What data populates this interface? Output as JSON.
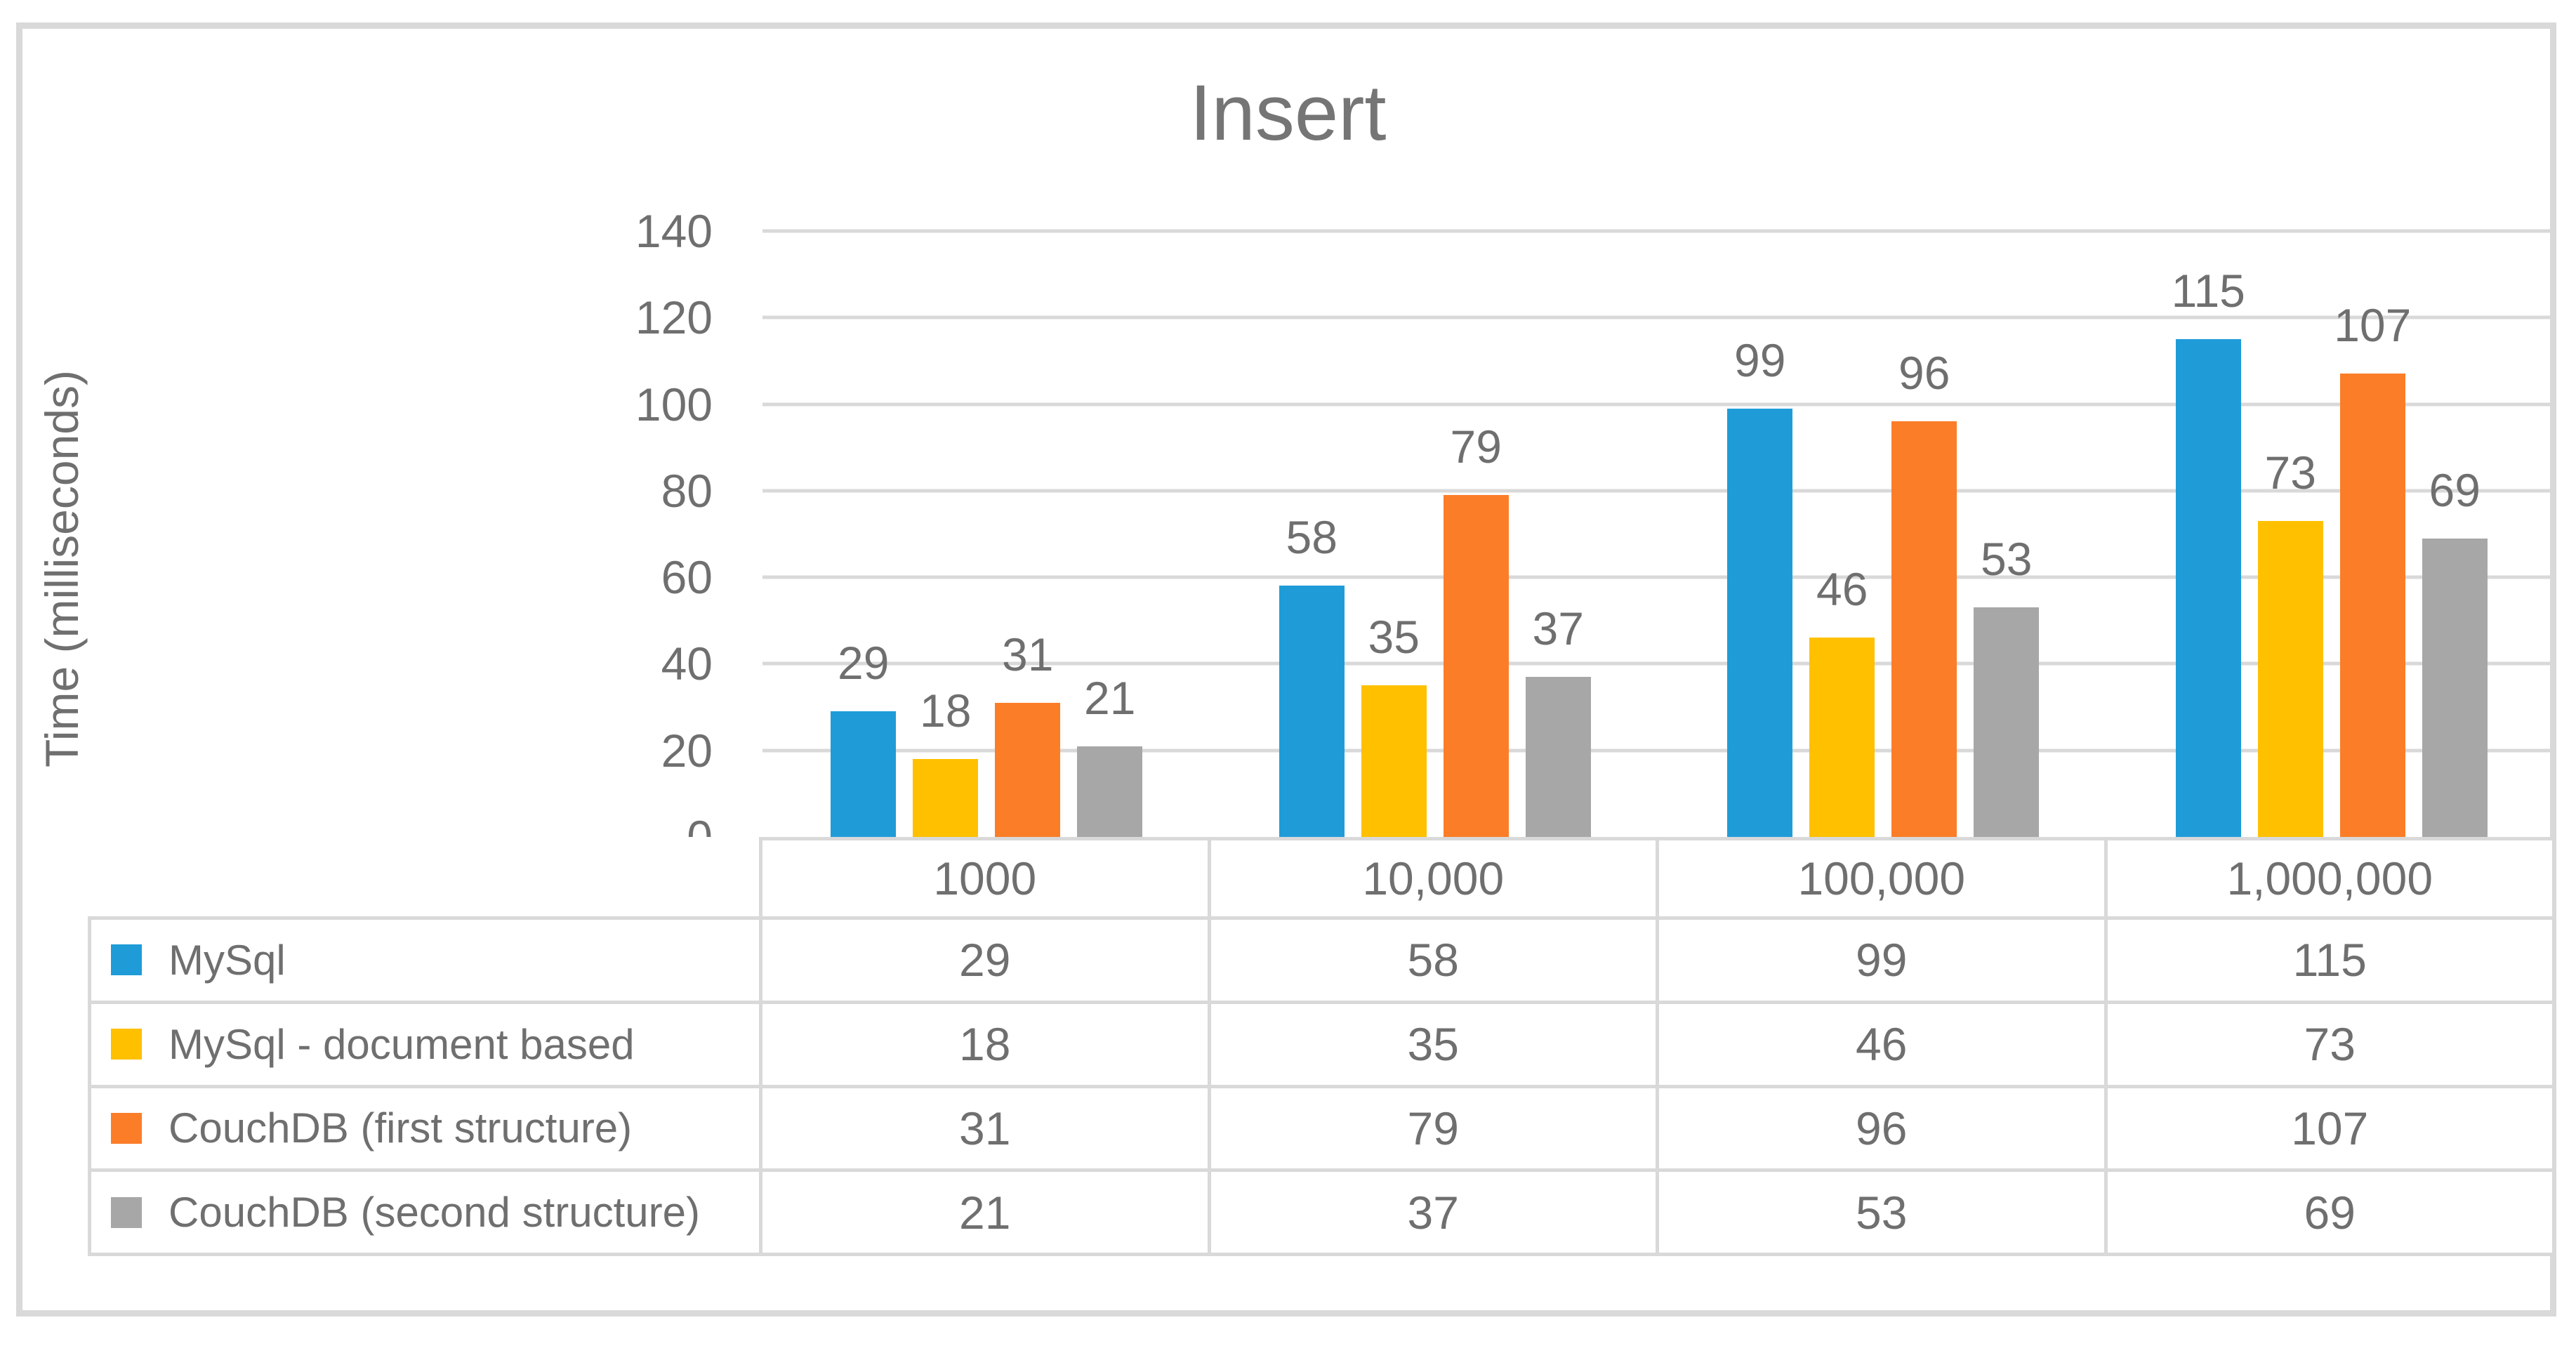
{
  "title": "Insert",
  "y_axis_title": "Time (milliseconds)",
  "colors": {
    "series_blue": "#1F9CD8",
    "series_yellow": "#FFC000",
    "series_orange": "#FB7D28",
    "series_gray": "#A7A7A7",
    "gridline": "#D9D9D9",
    "frame_border": "#D9D9D9",
    "text": "#6F6F6F",
    "title_text": "#757575"
  },
  "chart_data": {
    "type": "bar",
    "title": "Insert",
    "xlabel": "",
    "ylabel": "Time (milliseconds)",
    "ylim": [
      0,
      140
    ],
    "yticks": [
      0,
      20,
      40,
      60,
      80,
      100,
      120,
      140
    ],
    "grid": true,
    "data_labels": true,
    "legend_position": "data-table-left-column",
    "categories": [
      "1000",
      "10,000",
      "100,000",
      "1,000,000"
    ],
    "series": [
      {
        "name": "MySql",
        "color": "#1F9CD8",
        "values": [
          29,
          58,
          99,
          115
        ]
      },
      {
        "name": "MySql - document based",
        "color": "#FFC000",
        "values": [
          18,
          35,
          46,
          73
        ]
      },
      {
        "name": "CouchDB (first structure)",
        "color": "#FB7D28",
        "values": [
          31,
          79,
          96,
          107
        ]
      },
      {
        "name": "CouchDB (second structure)",
        "color": "#A7A7A7",
        "values": [
          21,
          37,
          53,
          69
        ]
      }
    ]
  }
}
